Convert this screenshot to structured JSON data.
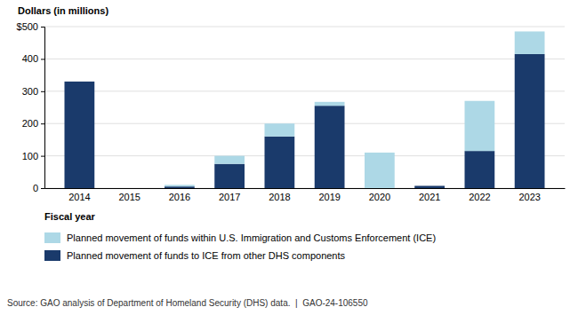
{
  "chart_data": {
    "type": "bar",
    "stacked": true,
    "categories": [
      "2014",
      "2015",
      "2016",
      "2017",
      "2018",
      "2019",
      "2020",
      "2021",
      "2022",
      "2023"
    ],
    "series": [
      {
        "name": "Planned movement of funds to ICE from other DHS components",
        "color": "#1a3a6b",
        "values": [
          330,
          0,
          5,
          75,
          160,
          255,
          0,
          7,
          115,
          415
        ]
      },
      {
        "name": "Planned movement of funds within U.S. Immigration and Customs Enforcement (ICE)",
        "color": "#add8e6",
        "values": [
          0,
          0,
          5,
          25,
          40,
          12,
          110,
          0,
          155,
          70
        ]
      }
    ],
    "ylabel": "Dollars (in millions)",
    "xlabel": "Fiscal year",
    "source": "Source: GAO analysis of Department of Homeland Security (DHS) data.  |  GAO-24-106550",
    "ylim": [
      0,
      500
    ],
    "yticks": [
      0,
      100,
      200,
      300,
      400,
      {
        "value": 500,
        "label": "$500"
      }
    ],
    "grid": true,
    "legend": "bottom"
  }
}
